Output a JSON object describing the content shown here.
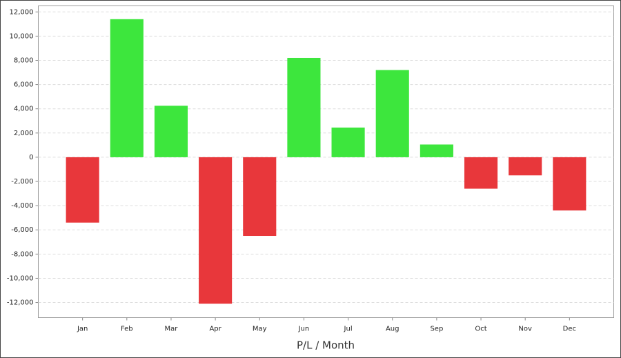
{
  "chart_data": {
    "type": "bar",
    "x_label": "P/L / Month",
    "categories": [
      "Jan",
      "Feb",
      "Mar",
      "Apr",
      "May",
      "Jun",
      "Jul",
      "Aug",
      "Sep",
      "Oct",
      "Nov",
      "Dec"
    ],
    "values": [
      -5400,
      11400,
      4250,
      -12100,
      -6500,
      8200,
      2450,
      7200,
      1050,
      -2600,
      -1500,
      -4400
    ],
    "positive_color": "#3de63d",
    "negative_color": "#e8373b",
    "ylim": [
      -13250,
      12500
    ],
    "yticks": [
      {
        "value": -12000,
        "label": "-12,000"
      },
      {
        "value": -10000,
        "label": "-10,000"
      },
      {
        "value": -8000,
        "label": "-8,000"
      },
      {
        "value": -6000,
        "label": "-6,000"
      },
      {
        "value": -4000,
        "label": "-4,000"
      },
      {
        "value": -2000,
        "label": "-2,000"
      },
      0,
      {
        "value": 2000,
        "label": "2,000"
      },
      {
        "value": 4000,
        "label": "4,000"
      },
      {
        "value": 6000,
        "label": "6,000"
      },
      {
        "value": 8000,
        "label": "8,000"
      },
      {
        "value": 10000,
        "label": "10,000"
      },
      {
        "value": 12000,
        "label": "12,000"
      }
    ],
    "grid": true
  }
}
